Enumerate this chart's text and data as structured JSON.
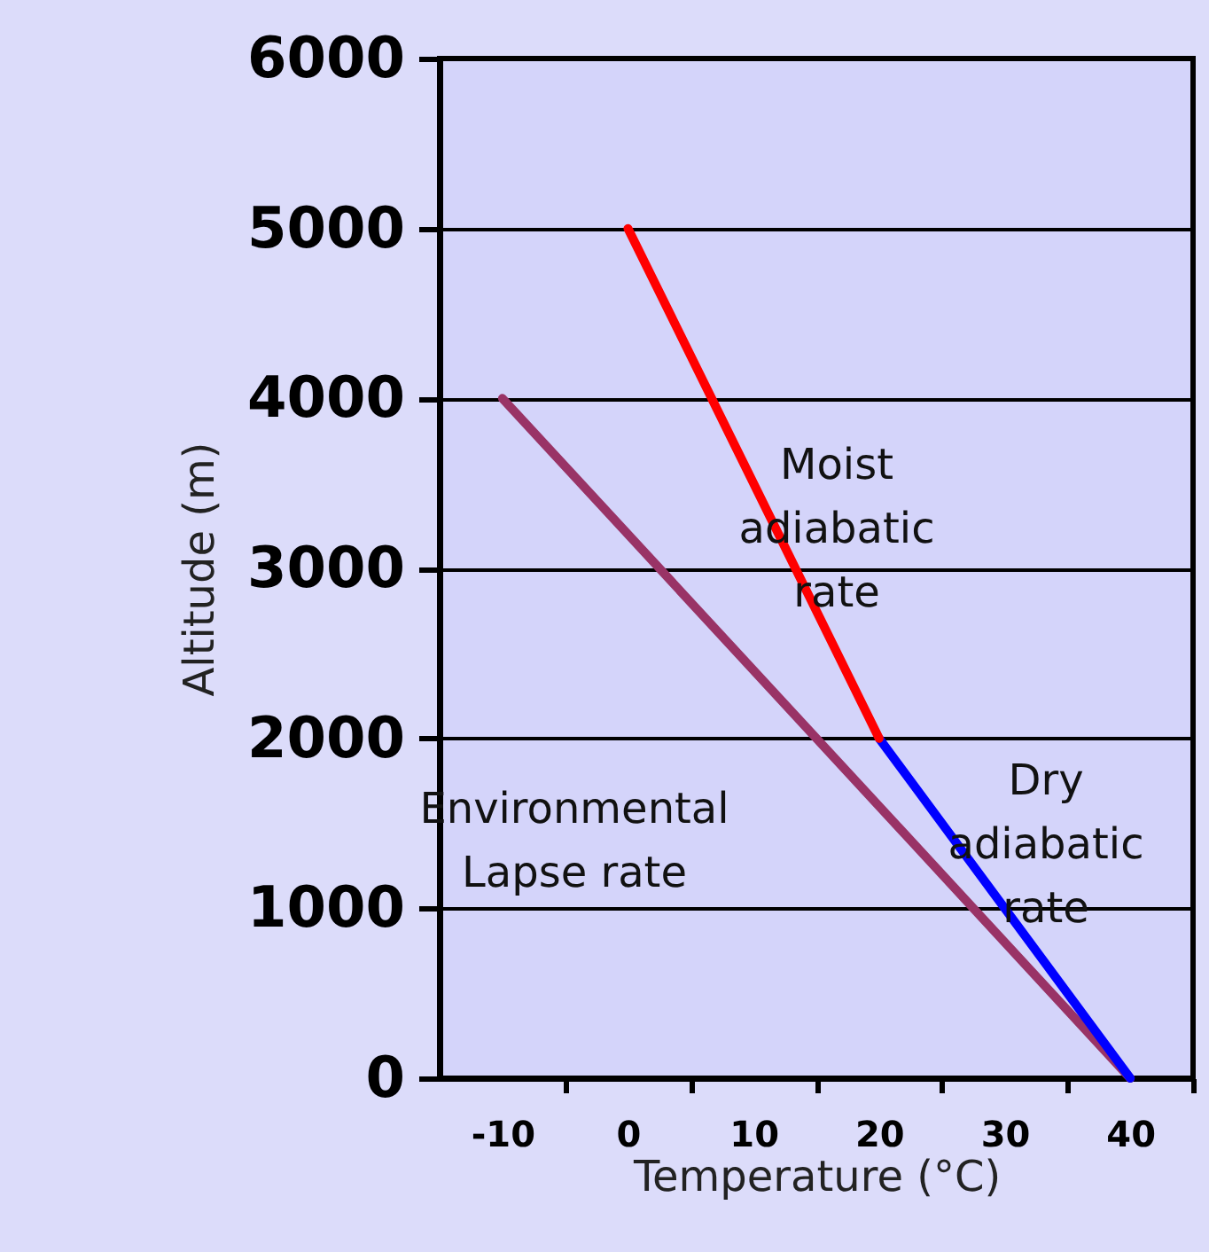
{
  "chart_data": {
    "type": "line",
    "xlabel": "Temperature (°C)",
    "ylabel": "Altitude (m)",
    "xlim": [
      -15,
      45
    ],
    "xticks": [
      -10,
      0,
      10,
      20,
      30,
      40
    ],
    "ylim": [
      0,
      6000
    ],
    "yticks": [
      0,
      1000,
      2000,
      3000,
      4000,
      5000,
      6000
    ],
    "grid": "y",
    "legend": false,
    "marker": "none",
    "line_style": "solid",
    "series": [
      {
        "color": "#993366",
        "x": [
          40,
          -10
        ],
        "values": [
          0,
          4000
        ]
      },
      {
        "color": "#0000ff",
        "x": [
          40,
          20
        ],
        "values": [
          0,
          2000
        ]
      },
      {
        "color": "#ff0000",
        "x": [
          20,
          0
        ],
        "values": [
          2000,
          5000
        ]
      }
    ],
    "annotations": [
      "Moist\nadiabatic\nrate",
      "Dry\nadiabatic\nrate",
      "Environmental\nLapse rate"
    ]
  }
}
